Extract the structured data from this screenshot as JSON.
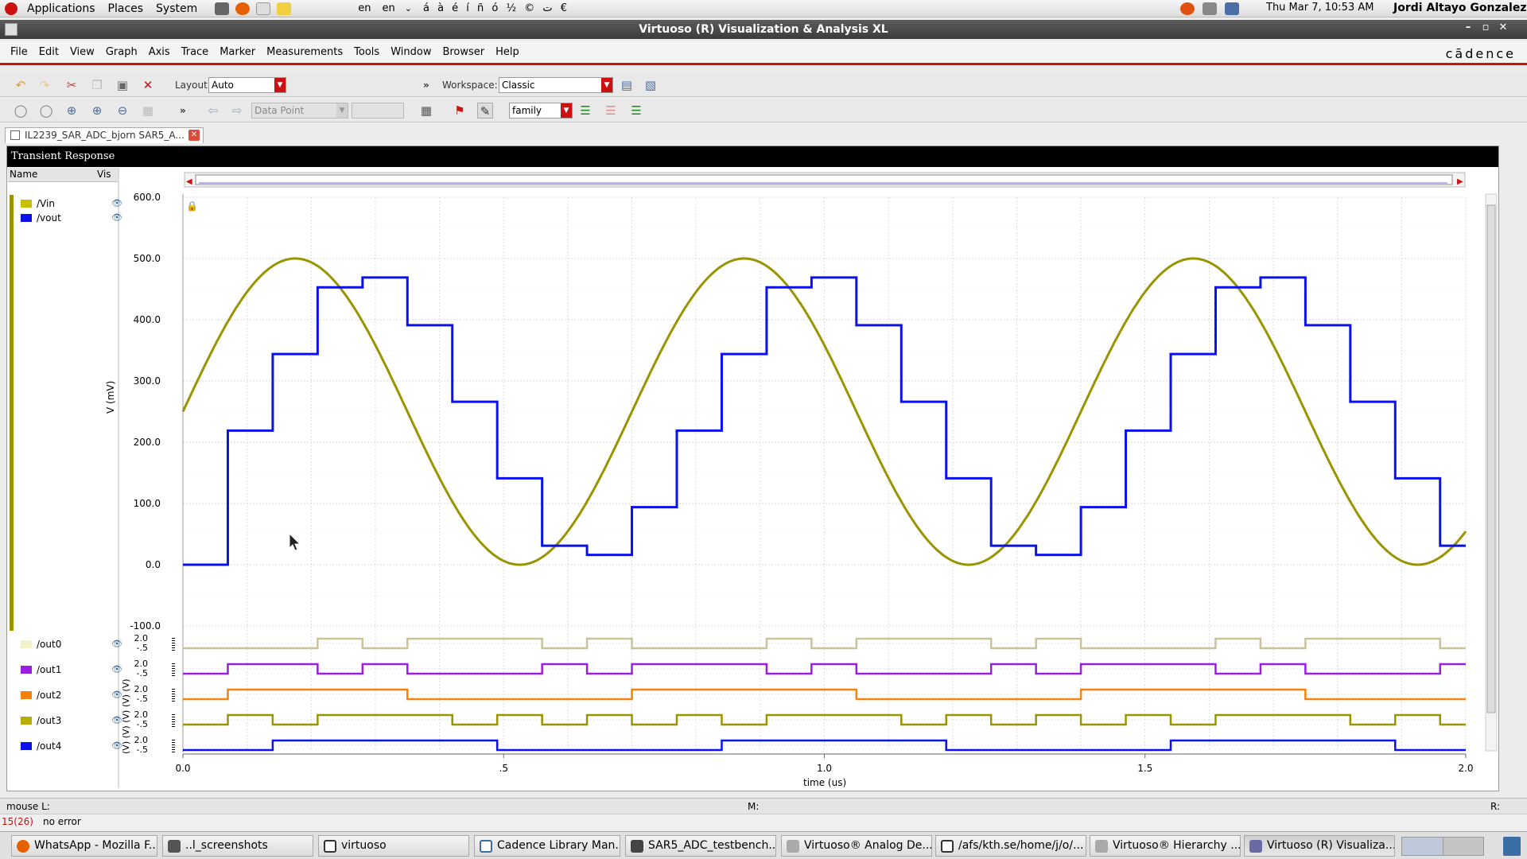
{
  "top_panel": {
    "menus": [
      "Applications",
      "Places",
      "System"
    ],
    "keyboard": [
      "en",
      "en"
    ],
    "chars": "á à é í ñ ó ½ © ت €",
    "clock": "Thu Mar 7, 10:53 AM",
    "user": "Jordi Altayo Gonzalez"
  },
  "window": {
    "title": "Virtuoso (R) Visualization & Analysis XL",
    "brand": "cādence"
  },
  "menubar": [
    "File",
    "Edit",
    "View",
    "Graph",
    "Axis",
    "Trace",
    "Marker",
    "Measurements",
    "Tools",
    "Window",
    "Browser",
    "Help"
  ],
  "toolbar1": {
    "layout_label": "Layout:",
    "layout_value": "Auto",
    "workspace_label": "Workspace:",
    "workspace_value": "Classic",
    "more": "»"
  },
  "toolbar2": {
    "mode_value": "Data Point",
    "family_value": "family",
    "more": "»"
  },
  "tab": {
    "label": "IL2239_SAR_ADC_bjorn SAR5_A..."
  },
  "plot": {
    "title": "Transient Response",
    "legend_header": {
      "name": "Name",
      "vis": "Vis"
    },
    "top_traces": [
      {
        "name": "/Vin",
        "color": "#9a9400"
      },
      {
        "name": "/vout",
        "color": "#0a10ee"
      }
    ],
    "digital_traces": [
      {
        "name": "/out0",
        "color": "#c9c39a"
      },
      {
        "name": "/out1",
        "color": "#9b1ee0"
      },
      {
        "name": "/out2",
        "color": "#f5820a"
      },
      {
        "name": "/out3",
        "color": "#9a9400"
      },
      {
        "name": "/out4",
        "color": "#0a10ee"
      }
    ],
    "y_label": "V (mV)",
    "y_ticks": [
      "600.0",
      "500.0",
      "400.0",
      "300.0",
      "200.0",
      "100.0",
      "0.0",
      "-100.0"
    ],
    "digital_y_label": "(V) (V) (V) (V) (V)",
    "digital_ticks": [
      "2.0",
      "-.5"
    ],
    "x_label": "time (us)",
    "x_ticks": [
      "0.0",
      ".5",
      "1.0",
      "1.5",
      "2.0"
    ]
  },
  "chart_data": {
    "type": "line",
    "title": "Transient Response",
    "xlabel": "time (us)",
    "ylabel": "V (mV)",
    "xlim": [
      0,
      2.0
    ],
    "ylim": [
      -100,
      600
    ],
    "grid": true,
    "legend": "left panel",
    "series": [
      {
        "name": "/Vin",
        "kind": "sine",
        "offset_mV": 250,
        "amplitude_mV": 250,
        "period_us": 0.7,
        "phase_start": 0
      },
      {
        "name": "/vout",
        "kind": "step",
        "x": [
          0,
          0.07,
          0.14,
          0.21,
          0.28,
          0.35,
          0.42,
          0.49,
          0.56,
          0.63,
          0.7,
          0.77,
          0.84,
          0.91,
          0.98,
          1.05,
          1.12,
          1.19,
          1.26,
          1.33,
          1.4,
          1.47,
          1.54,
          1.61,
          1.68,
          1.75,
          1.82,
          1.89,
          1.96,
          2.0
        ],
        "y": [
          0,
          219,
          344,
          453,
          469,
          391,
          266,
          141,
          31,
          16,
          94,
          219,
          344,
          453,
          469,
          391,
          266,
          141,
          31,
          16,
          94,
          219,
          344,
          453,
          469,
          391,
          266,
          141,
          31,
          31
        ]
      }
    ],
    "digital": [
      {
        "name": "/out0",
        "x": [
          0,
          0.21,
          0.28,
          0.35,
          0.56,
          0.63,
          0.7,
          0.91,
          0.98,
          1.05,
          1.26,
          1.33,
          1.4,
          1.61,
          1.68,
          1.75,
          1.96,
          2.0
        ],
        "y": [
          0,
          1,
          0,
          1,
          0,
          1,
          0,
          1,
          0,
          1,
          0,
          1,
          0,
          1,
          0,
          1,
          0,
          0
        ]
      },
      {
        "name": "/out1",
        "x": [
          0,
          0.07,
          0.21,
          0.28,
          0.35,
          0.56,
          0.63,
          0.7,
          0.91,
          0.98,
          1.05,
          1.26,
          1.33,
          1.4,
          1.61,
          1.68,
          1.75,
          1.96,
          2.0
        ],
        "y": [
          0,
          1,
          0,
          1,
          0,
          1,
          0,
          1,
          0,
          1,
          0,
          1,
          0,
          1,
          0,
          1,
          0,
          1,
          1
        ]
      },
      {
        "name": "/out2",
        "x": [
          0,
          0.07,
          0.35,
          0.7,
          1.05,
          1.4,
          1.75,
          2.0
        ],
        "y": [
          0,
          1,
          0,
          1,
          0,
          1,
          0,
          0
        ]
      },
      {
        "name": "/out3",
        "x": [
          0,
          0.07,
          0.14,
          0.21,
          0.42,
          0.49,
          0.56,
          0.63,
          0.7,
          0.77,
          0.84,
          0.91,
          1.12,
          1.19,
          1.26,
          1.33,
          1.4,
          1.47,
          1.54,
          1.61,
          1.82,
          1.89,
          1.96,
          2.0
        ],
        "y": [
          0,
          1,
          0,
          1,
          0,
          1,
          0,
          1,
          0,
          1,
          0,
          1,
          0,
          1,
          0,
          1,
          0,
          1,
          0,
          1,
          0,
          1,
          0,
          0
        ]
      },
      {
        "name": "/out4",
        "x": [
          0,
          0.14,
          0.49,
          0.84,
          1.19,
          1.54,
          1.89,
          2.0
        ],
        "y": [
          0,
          1,
          0,
          1,
          0,
          1,
          0,
          0
        ]
      }
    ]
  },
  "status": {
    "mouse": "mouse L:",
    "middle": "M:",
    "right": "R:",
    "cmd_num": "15(26)",
    "msg": "no error"
  },
  "taskbar": [
    {
      "label": "WhatsApp - Mozilla F...",
      "icon_color": "#e66000"
    },
    {
      "label": "..l_screenshots",
      "icon_color": "#555555"
    },
    {
      "label": "virtuoso",
      "icon_color": "#333333"
    },
    {
      "label": "Cadence Library Man...",
      "icon_color": "#3a6ea5"
    },
    {
      "label": "SAR5_ADC_testbench...",
      "icon_color": "#444444"
    },
    {
      "label": "Virtuoso® Analog De...",
      "icon_color": "#888888"
    },
    {
      "label": "/afs/kth.se/home/j/o/...",
      "icon_color": "#333333"
    },
    {
      "label": "Virtuoso® Hierarchy ...",
      "icon_color": "#888888"
    },
    {
      "label": "Virtuoso (R) Visualiza...",
      "icon_color": "#6a6aa5"
    }
  ]
}
